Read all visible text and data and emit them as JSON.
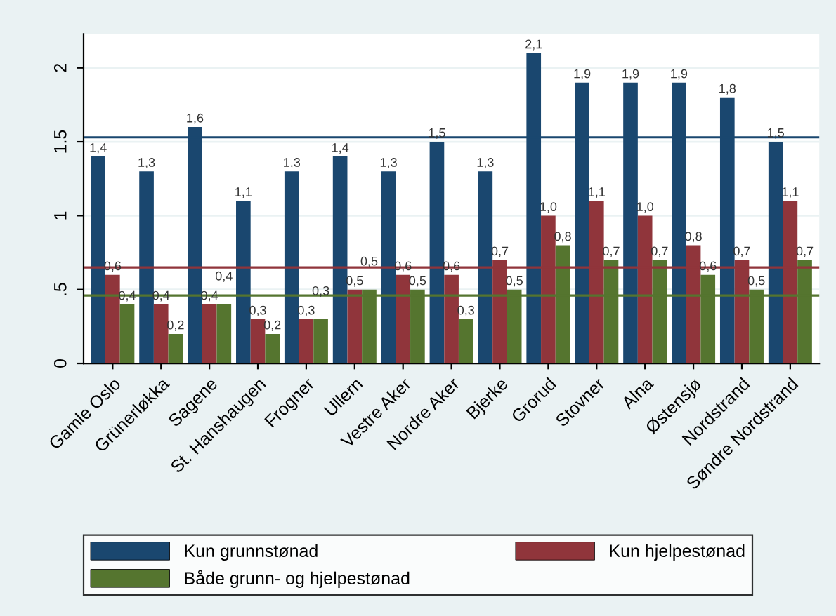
{
  "chart_data": {
    "type": "bar",
    "categories": [
      "Gamle Oslo",
      "Grünerløkka",
      "Sagene",
      "St. Hanshaugen",
      "Frogner",
      "Ullern",
      "Vestre Aker",
      "Nordre Aker",
      "Bjerke",
      "Grorud",
      "Stovner",
      "Alna",
      "Østensjø",
      "Nordstrand",
      "Søndre Nordstrand"
    ],
    "series": [
      {
        "name": "Kun grunnstønad",
        "color": "#1a476f",
        "values": [
          1.4,
          1.3,
          1.6,
          1.1,
          1.3,
          1.4,
          1.3,
          1.5,
          1.3,
          2.1,
          1.9,
          1.9,
          1.9,
          1.8,
          1.5
        ],
        "value_labels": [
          "1,4",
          "1,3",
          "1,6",
          "1,1",
          "1,3",
          "1,4",
          "1,3",
          "1,5",
          "1,3",
          "2,1",
          "1,9",
          "1,9",
          "1,9",
          "1,8",
          "1,5"
        ]
      },
      {
        "name": "Kun hjelpestønad",
        "color": "#90353b",
        "values": [
          0.6,
          0.4,
          0.4,
          0.3,
          0.3,
          0.5,
          0.6,
          0.6,
          0.7,
          1.0,
          1.1,
          1.0,
          0.8,
          0.7,
          1.1
        ],
        "value_labels": [
          "0,6",
          "0,4",
          "0,4",
          "0,3",
          "0,3",
          "0,5",
          "0,6",
          "0,6",
          "0,7",
          "1,0",
          "1,1",
          "1,0",
          "0,8",
          "0,7",
          "1,1"
        ]
      },
      {
        "name": "Både grunn- og hjelpestønad",
        "color": "#55752f",
        "values": [
          0.4,
          0.2,
          0.4,
          0.2,
          0.3,
          0.5,
          0.5,
          0.3,
          0.5,
          0.8,
          0.7,
          0.7,
          0.6,
          0.5,
          0.7
        ],
        "value_labels": [
          "0,4",
          "0,2",
          "0,4",
          "0,2",
          "0,3",
          "0,5",
          "0,5",
          "0,3",
          "0,5",
          "0,8",
          "0,7",
          "0,7",
          "0,6",
          "0,5",
          "0,7"
        ]
      }
    ],
    "ylim": [
      0,
      2.23
    ],
    "yticks": [
      0,
      {
        "value": 0.5,
        "label": ".5"
      },
      1,
      1.5,
      2
    ],
    "ref_lines": [
      {
        "axis": "y",
        "value": 1.53,
        "color": "#1a476f"
      },
      {
        "axis": "y",
        "value": 0.65,
        "color": "#90353b"
      },
      {
        "axis": "y",
        "value": 0.46,
        "color": "#55752f"
      }
    ],
    "grid": "y",
    "legend": "bottom"
  }
}
